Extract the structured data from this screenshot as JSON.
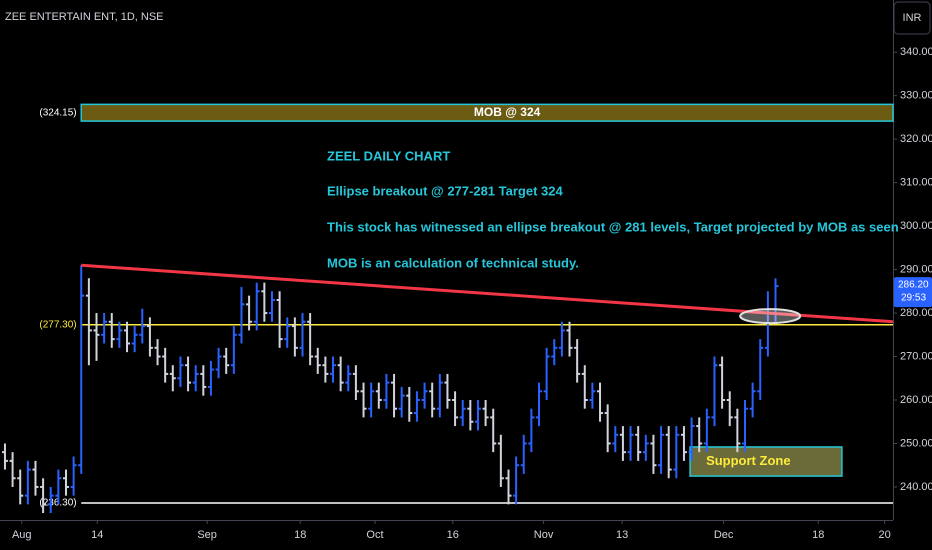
{
  "chart_data": {
    "type": "ohlc",
    "title": "ZEE ENTERTAIN ENT, 1D, NSE",
    "currency": "INR",
    "up_color": "#2962ff",
    "down_color": "#d1d4dc",
    "xlim": [
      -0.65,
      116.4
    ],
    "xticks": [
      {
        "value": 2.2,
        "label": "Aug"
      },
      {
        "value": 12.1,
        "label": "14"
      },
      {
        "value": 26.5,
        "label": "Sep"
      },
      {
        "value": 38.7,
        "label": "18"
      },
      {
        "value": 48.5,
        "label": "Oct"
      },
      {
        "value": 58.7,
        "label": "16"
      },
      {
        "value": 70.6,
        "label": "Nov"
      },
      {
        "value": 80.9,
        "label": "13"
      },
      {
        "value": 94.2,
        "label": "Dec"
      },
      {
        "value": 106.6,
        "label": "18"
      },
      {
        "value": 115.3,
        "label": "20"
      }
    ],
    "ylim": [
      232.4,
      352
    ],
    "yticks": [
      {
        "value": 240,
        "label": "240.00"
      },
      {
        "value": 250,
        "label": "250.00"
      },
      {
        "value": 260,
        "label": "260.00"
      },
      {
        "value": 270,
        "label": "270.00"
      },
      {
        "value": 280,
        "label": "280.00"
      },
      {
        "value": 290,
        "label": "290.00"
      },
      {
        "value": 300,
        "label": "300.00"
      },
      {
        "value": 310,
        "label": "310.00"
      },
      {
        "value": 320,
        "label": "320.00"
      },
      {
        "value": 330,
        "label": "330.00"
      },
      {
        "value": 340,
        "label": "340.00"
      }
    ],
    "bars": [
      [
        248,
        250,
        244,
        246
      ],
      [
        246,
        248,
        240,
        242
      ],
      [
        242,
        244,
        236,
        238
      ],
      [
        238,
        246,
        236,
        244
      ],
      [
        244,
        246,
        238,
        240
      ],
      [
        240,
        242,
        234,
        236
      ],
      [
        236,
        240,
        234,
        238
      ],
      [
        238,
        244,
        236,
        242
      ],
      [
        242,
        244,
        238,
        240
      ],
      [
        240,
        247,
        238,
        245
      ],
      [
        245,
        291,
        243,
        284
      ],
      [
        284,
        288,
        268,
        276
      ],
      [
        276,
        280,
        269,
        275
      ],
      [
        275,
        280,
        273,
        278
      ],
      [
        278,
        280,
        272,
        274
      ],
      [
        274,
        278,
        272,
        276
      ],
      [
        276,
        278,
        271,
        273
      ],
      [
        273,
        277,
        271,
        275
      ],
      [
        275,
        281,
        273,
        277
      ],
      [
        277,
        279,
        270,
        272
      ],
      [
        272,
        274,
        268,
        270
      ],
      [
        270,
        272,
        264,
        266
      ],
      [
        266,
        268,
        262,
        265
      ],
      [
        265,
        270,
        263,
        268
      ],
      [
        268,
        270,
        262,
        264
      ],
      [
        264,
        268,
        262,
        266
      ],
      [
        266,
        268,
        261,
        263
      ],
      [
        263,
        269,
        261,
        267
      ],
      [
        267,
        272,
        265,
        270
      ],
      [
        270,
        272,
        266,
        268
      ],
      [
        268,
        277,
        266,
        275
      ],
      [
        275,
        286,
        273,
        282
      ],
      [
        282,
        284,
        276,
        278
      ],
      [
        278,
        287,
        276,
        285
      ],
      [
        285,
        287,
        278,
        280
      ],
      [
        280,
        285,
        278,
        283
      ],
      [
        283,
        285,
        272,
        274
      ],
      [
        274,
        279,
        272,
        277
      ],
      [
        277,
        279,
        270,
        272
      ],
      [
        272,
        280,
        270,
        278
      ],
      [
        278,
        280,
        268,
        270
      ],
      [
        270,
        272,
        266,
        268
      ],
      [
        268,
        270,
        264,
        266
      ],
      [
        266,
        270,
        264,
        268
      ],
      [
        268,
        270,
        262,
        264
      ],
      [
        264,
        268,
        262,
        266
      ],
      [
        266,
        268,
        260,
        262
      ],
      [
        262,
        264,
        256,
        258
      ],
      [
        258,
        264,
        256,
        262
      ],
      [
        262,
        264,
        258,
        260
      ],
      [
        260,
        266,
        258,
        264
      ],
      [
        264,
        266,
        256,
        258
      ],
      [
        258,
        263,
        256,
        261
      ],
      [
        261,
        263,
        255,
        257
      ],
      [
        257,
        262,
        255,
        260
      ],
      [
        260,
        264,
        258,
        262
      ],
      [
        262,
        264,
        256,
        258
      ],
      [
        258,
        266,
        256,
        264
      ],
      [
        264,
        266,
        258,
        260
      ],
      [
        260,
        262,
        254,
        256
      ],
      [
        256,
        260,
        254,
        258
      ],
      [
        258,
        260,
        253,
        255
      ],
      [
        255,
        260,
        253,
        258
      ],
      [
        258,
        260,
        254,
        256
      ],
      [
        256,
        258,
        248,
        250
      ],
      [
        250,
        252,
        240,
        242
      ],
      [
        242,
        244,
        236,
        238
      ],
      [
        238,
        247,
        236,
        245
      ],
      [
        245,
        252,
        243,
        250
      ],
      [
        250,
        258,
        248,
        256
      ],
      [
        256,
        264,
        254,
        262
      ],
      [
        262,
        272,
        260,
        270
      ],
      [
        270,
        274,
        268,
        272
      ],
      [
        272,
        278,
        270,
        276
      ],
      [
        276,
        278,
        270,
        272
      ],
      [
        272,
        274,
        264,
        266
      ],
      [
        266,
        268,
        258,
        260
      ],
      [
        260,
        264,
        258,
        262
      ],
      [
        262,
        264,
        255,
        257
      ],
      [
        257,
        259,
        248,
        250
      ],
      [
        250,
        254,
        248,
        252
      ],
      [
        252,
        254,
        246,
        248
      ],
      [
        248,
        254,
        246,
        252
      ],
      [
        252,
        254,
        246,
        248
      ],
      [
        248,
        252,
        246,
        250
      ],
      [
        250,
        252,
        243,
        245
      ],
      [
        245,
        254,
        243,
        252
      ],
      [
        252,
        254,
        242,
        244
      ],
      [
        244,
        254,
        242,
        252
      ],
      [
        252,
        254,
        246,
        248
      ],
      [
        248,
        256,
        246,
        254
      ],
      [
        254,
        256,
        248,
        250
      ],
      [
        250,
        258,
        248,
        256
      ],
      [
        256,
        270,
        254,
        268
      ],
      [
        268,
        270,
        258,
        260
      ],
      [
        260,
        262,
        254,
        256
      ],
      [
        256,
        258,
        248,
        250
      ],
      [
        250,
        260,
        248,
        258
      ],
      [
        258,
        264,
        256,
        262
      ],
      [
        262,
        274,
        260,
        272
      ],
      [
        272,
        285,
        270,
        280
      ],
      [
        280,
        288,
        278,
        286.2
      ]
    ],
    "last_price": {
      "value": 286.2,
      "label": "286.20",
      "countdown": "29:53",
      "color": "#2962ff"
    },
    "trendline": {
      "x": [
        10,
        116.4
      ],
      "y": [
        291,
        278
      ],
      "color": "#f23645"
    },
    "levels": [
      {
        "value": 277.3,
        "label": "(277.30)",
        "color": "#ffeb3b"
      },
      {
        "value": 236.3,
        "label": "(236.30)",
        "color": "#ffffff"
      }
    ],
    "mob_zone": {
      "low": 324.15,
      "high": 328,
      "label": "MOB @ 324",
      "price_label": "(324.15)",
      "fill": "#6b5b12",
      "border": "#26c6da"
    },
    "support_zone": {
      "x": [
        89.8,
        109.7
      ],
      "low": 242.5,
      "high": 249.2,
      "label": "Support  Zone",
      "fill": "#6b6b3a",
      "border": "#26c6da"
    },
    "ellipse": {
      "x": 100.3,
      "y": 279.3
    },
    "annotations": [
      "ZEEL    DAILY    CHART",
      "Ellipse breakout @ 277-281        Target 324",
      "This stock has witnessed an ellipse breakout @ 281 levels, Target projected by MOB as seen",
      "MOB is an calculation of technical study."
    ]
  }
}
